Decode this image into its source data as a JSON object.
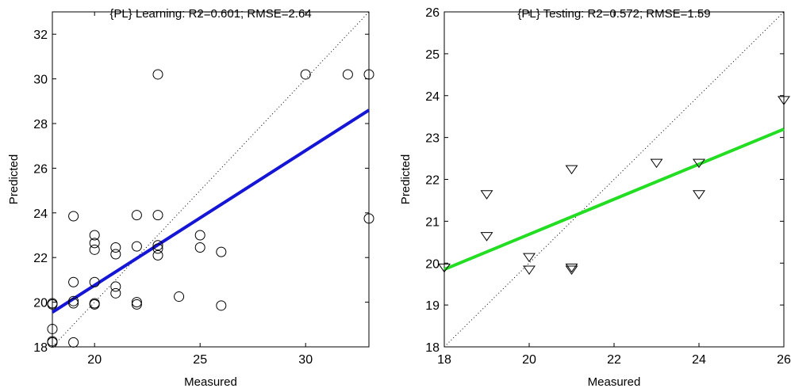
{
  "chart_data": [
    {
      "type": "scatter",
      "title": "{PL} Learning: R2=0.601; RMSE=2.64",
      "xlabel": "Measured",
      "ylabel": "Predicted",
      "xlim": [
        18,
        33
      ],
      "ylim": [
        18,
        33
      ],
      "xticks": [
        20,
        25,
        30
      ],
      "yticks": [
        18,
        20,
        22,
        24,
        26,
        28,
        30,
        32
      ],
      "marker": "circle",
      "grid": false,
      "identity_line": true,
      "fit_line": {
        "x": [
          18,
          33
        ],
        "y": [
          19.55,
          28.6
        ],
        "color": "#1515d6"
      },
      "points": [
        [
          18,
          19.95
        ],
        [
          18,
          19.9
        ],
        [
          18,
          18.8
        ],
        [
          18,
          18.2
        ],
        [
          18,
          18.25
        ],
        [
          19,
          23.85
        ],
        [
          19,
          20.9
        ],
        [
          19,
          20.05
        ],
        [
          19,
          19.95
        ],
        [
          19,
          18.2
        ],
        [
          20,
          23.0
        ],
        [
          20,
          22.65
        ],
        [
          20,
          22.35
        ],
        [
          20,
          20.9
        ],
        [
          20,
          19.95
        ],
        [
          20,
          19.9
        ],
        [
          21,
          22.45
        ],
        [
          21,
          22.15
        ],
        [
          21,
          20.7
        ],
        [
          21,
          20.4
        ],
        [
          22,
          23.9
        ],
        [
          22,
          22.5
        ],
        [
          22,
          20.0
        ],
        [
          22,
          19.9
        ],
        [
          23,
          30.2
        ],
        [
          23,
          23.9
        ],
        [
          23,
          22.55
        ],
        [
          23,
          22.4
        ],
        [
          23,
          22.1
        ],
        [
          24,
          20.25
        ],
        [
          25,
          23.0
        ],
        [
          25,
          22.45
        ],
        [
          26,
          22.25
        ],
        [
          26,
          19.85
        ],
        [
          30,
          30.2
        ],
        [
          32,
          30.2
        ],
        [
          33,
          30.2
        ],
        [
          33,
          23.75
        ]
      ]
    },
    {
      "type": "scatter",
      "title": "{PL} Testing: R2=0.572; RMSE=1.59",
      "xlabel": "Measured",
      "ylabel": "Predicted",
      "xlim": [
        18,
        26
      ],
      "ylim": [
        18,
        26
      ],
      "xticks": [
        18,
        20,
        22,
        24,
        26
      ],
      "yticks": [
        18,
        19,
        20,
        21,
        22,
        23,
        24,
        25,
        26
      ],
      "marker": "triangle-down",
      "grid": false,
      "identity_line": true,
      "fit_line": {
        "x": [
          18,
          26
        ],
        "y": [
          19.85,
          23.2
        ],
        "color": "#22dd22"
      },
      "points": [
        [
          18,
          19.9
        ],
        [
          19,
          21.65
        ],
        [
          19,
          20.65
        ],
        [
          20,
          20.15
        ],
        [
          20,
          19.85
        ],
        [
          21,
          22.25
        ],
        [
          21,
          19.9
        ],
        [
          21,
          19.85
        ],
        [
          23,
          22.4
        ],
        [
          24,
          22.4
        ],
        [
          24,
          21.65
        ],
        [
          26,
          23.9
        ]
      ]
    }
  ]
}
